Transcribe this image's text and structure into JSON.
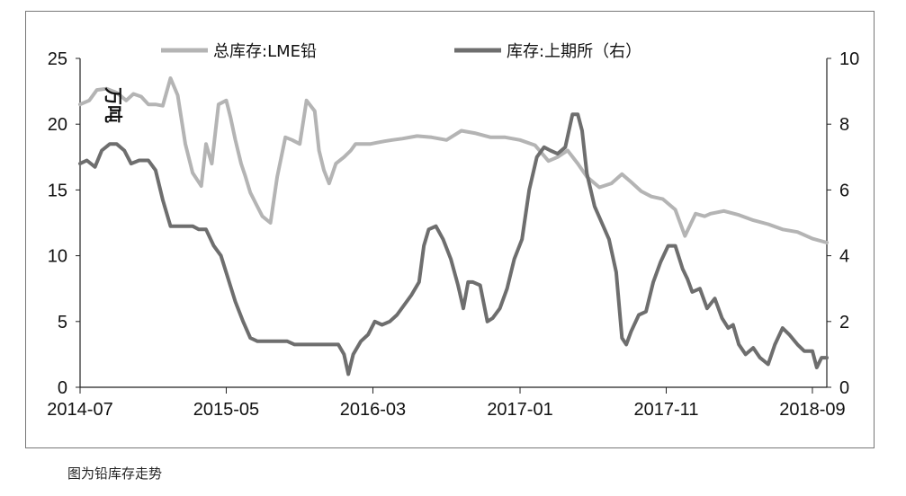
{
  "caption": "图为铅库存走势",
  "chart_data": {
    "type": "line",
    "xlabel": "",
    "ylabel": "万吨",
    "ylabel_right": "",
    "ylim": [
      0,
      25
    ],
    "ylim_right": [
      0,
      10
    ],
    "yticks": [
      0,
      5,
      10,
      15,
      20,
      25
    ],
    "yticks_right": [
      0,
      2,
      4,
      6,
      8,
      10
    ],
    "xlim": [
      "2014-07-01",
      "2018-10-01"
    ],
    "xticks": [
      "2014-07",
      "2015-05",
      "2016-03",
      "2017-01",
      "2017-11",
      "2018-09"
    ],
    "legend_position": "top",
    "grid": false,
    "series": [
      {
        "name": "总库存:LME铅",
        "axis": "left",
        "color": "#b4b4b4",
        "x": [
          "2014-07-01",
          "2014-07-20",
          "2014-08-05",
          "2014-08-25",
          "2014-09-15",
          "2014-10-05",
          "2014-10-20",
          "2014-11-05",
          "2014-11-20",
          "2014-12-05",
          "2014-12-20",
          "2015-01-05",
          "2015-01-20",
          "2015-02-05",
          "2015-02-20",
          "2015-03-01",
          "2015-03-10",
          "2015-03-20",
          "2015-04-01",
          "2015-04-15",
          "2015-05-01",
          "2015-05-10",
          "2015-05-20",
          "2015-06-01",
          "2015-06-10",
          "2015-06-20",
          "2015-07-01",
          "2015-07-15",
          "2015-08-01",
          "2015-08-15",
          "2015-09-01",
          "2015-09-15",
          "2015-10-01",
          "2015-10-15",
          "2015-11-01",
          "2015-11-10",
          "2015-11-20",
          "2015-12-01",
          "2015-12-15",
          "2016-01-01",
          "2016-01-15",
          "2016-01-25",
          "2016-02-05",
          "2016-02-15",
          "2016-02-25",
          "2016-03-10",
          "2016-03-25",
          "2016-04-10",
          "2016-05-01",
          "2016-06-01",
          "2016-07-01",
          "2016-08-01",
          "2016-09-01",
          "2016-10-01",
          "2016-11-01",
          "2016-12-01",
          "2017-01-01",
          "2017-02-01",
          "2017-03-01",
          "2017-03-20",
          "2017-04-10",
          "2017-05-01",
          "2017-05-20",
          "2017-06-15",
          "2017-07-10",
          "2017-08-01",
          "2017-08-20",
          "2017-09-10",
          "2017-10-01",
          "2017-10-25",
          "2017-11-20",
          "2017-12-10",
          "2018-01-01",
          "2018-01-20",
          "2018-02-01",
          "2018-03-01",
          "2018-04-01",
          "2018-05-01",
          "2018-06-01",
          "2018-07-01",
          "2018-08-01",
          "2018-09-01",
          "2018-10-01"
        ],
        "values": [
          21.5,
          21.8,
          22.6,
          22.7,
          22.4,
          21.8,
          22.3,
          22.1,
          21.5,
          21.5,
          21.4,
          23.5,
          22.2,
          18.5,
          16.3,
          15.8,
          15.3,
          18.5,
          17.0,
          21.5,
          21.8,
          20.5,
          18.8,
          17.0,
          16.0,
          14.8,
          14.0,
          13.0,
          12.5,
          16.0,
          19.0,
          18.8,
          18.5,
          21.8,
          21.0,
          18.0,
          16.5,
          15.5,
          17.0,
          17.5,
          18.0,
          18.5,
          18.5,
          18.5,
          18.5,
          18.6,
          18.7,
          18.8,
          18.9,
          19.1,
          19.0,
          18.8,
          19.5,
          19.3,
          19.0,
          19.0,
          18.8,
          18.4,
          17.2,
          17.5,
          18.0,
          17.0,
          16.0,
          15.2,
          15.5,
          16.2,
          15.6,
          14.9,
          14.5,
          14.3,
          13.5,
          11.5,
          13.2,
          13.0,
          13.2,
          13.4,
          13.1,
          12.7,
          12.4,
          12.0,
          11.8,
          11.3,
          11.0
        ]
      },
      {
        "name": "库存:上期所（右）",
        "axis": "right",
        "color": "#6e6e6e",
        "x": [
          "2014-07-01",
          "2014-07-15",
          "2014-08-01",
          "2014-08-15",
          "2014-09-01",
          "2014-09-15",
          "2014-10-01",
          "2014-10-15",
          "2014-11-01",
          "2014-11-20",
          "2014-12-05",
          "2014-12-20",
          "2015-01-05",
          "2015-01-20",
          "2015-02-05",
          "2015-02-20",
          "2015-03-05",
          "2015-03-20",
          "2015-04-05",
          "2015-04-20",
          "2015-05-05",
          "2015-05-20",
          "2015-06-05",
          "2015-06-20",
          "2015-07-05",
          "2015-07-20",
          "2015-08-05",
          "2015-08-20",
          "2015-09-05",
          "2015-09-20",
          "2015-10-05",
          "2015-10-20",
          "2015-11-05",
          "2015-11-20",
          "2015-12-05",
          "2015-12-20",
          "2016-01-01",
          "2016-01-10",
          "2016-01-20",
          "2016-02-05",
          "2016-02-20",
          "2016-03-05",
          "2016-03-20",
          "2016-04-05",
          "2016-04-20",
          "2016-05-05",
          "2016-05-20",
          "2016-06-05",
          "2016-06-15",
          "2016-06-25",
          "2016-07-10",
          "2016-07-25",
          "2016-08-10",
          "2016-08-25",
          "2016-09-05",
          "2016-09-15",
          "2016-09-25",
          "2016-10-10",
          "2016-10-25",
          "2016-11-05",
          "2016-11-20",
          "2016-12-05",
          "2016-12-20",
          "2017-01-05",
          "2017-01-20",
          "2017-02-05",
          "2017-02-20",
          "2017-03-05",
          "2017-03-20",
          "2017-04-05",
          "2017-04-20",
          "2017-05-01",
          "2017-05-10",
          "2017-05-20",
          "2017-06-05",
          "2017-06-20",
          "2017-07-05",
          "2017-07-20",
          "2017-08-01",
          "2017-08-10",
          "2017-08-20",
          "2017-09-05",
          "2017-09-20",
          "2017-10-05",
          "2017-10-20",
          "2017-11-05",
          "2017-11-20",
          "2017-12-05",
          "2017-12-15",
          "2017-12-25",
          "2018-01-10",
          "2018-01-25",
          "2018-02-10",
          "2018-02-25",
          "2018-03-10",
          "2018-03-20",
          "2018-04-01",
          "2018-04-15",
          "2018-05-01",
          "2018-05-15",
          "2018-06-01",
          "2018-06-15",
          "2018-07-01",
          "2018-07-15",
          "2018-08-01",
          "2018-08-15",
          "2018-09-01",
          "2018-09-10",
          "2018-09-20",
          "2018-10-01"
        ],
        "values": [
          6.8,
          6.9,
          6.7,
          7.2,
          7.4,
          7.4,
          7.2,
          6.8,
          6.9,
          6.9,
          6.6,
          5.7,
          4.9,
          4.9,
          4.9,
          4.9,
          4.8,
          4.8,
          4.3,
          4.0,
          3.3,
          2.6,
          2.0,
          1.5,
          1.4,
          1.4,
          1.4,
          1.4,
          1.4,
          1.3,
          1.3,
          1.3,
          1.3,
          1.3,
          1.3,
          1.3,
          1.0,
          0.4,
          1.0,
          1.4,
          1.6,
          2.0,
          1.9,
          2.0,
          2.2,
          2.5,
          2.8,
          3.2,
          4.3,
          4.8,
          4.9,
          4.5,
          3.9,
          3.1,
          2.4,
          3.2,
          3.2,
          3.1,
          2.0,
          2.1,
          2.4,
          3.0,
          3.9,
          4.5,
          6.0,
          7.0,
          7.3,
          7.2,
          7.1,
          7.3,
          8.3,
          8.3,
          7.8,
          6.5,
          5.5,
          5.0,
          4.5,
          3.5,
          1.5,
          1.3,
          1.7,
          2.2,
          2.3,
          3.2,
          3.8,
          4.3,
          4.3,
          3.6,
          3.3,
          2.9,
          3.0,
          2.4,
          2.7,
          2.1,
          1.8,
          1.9,
          1.3,
          1.0,
          1.2,
          0.9,
          0.7,
          1.3,
          1.8,
          1.6,
          1.3,
          1.1,
          1.1,
          0.6,
          0.9,
          0.9
        ]
      }
    ]
  }
}
